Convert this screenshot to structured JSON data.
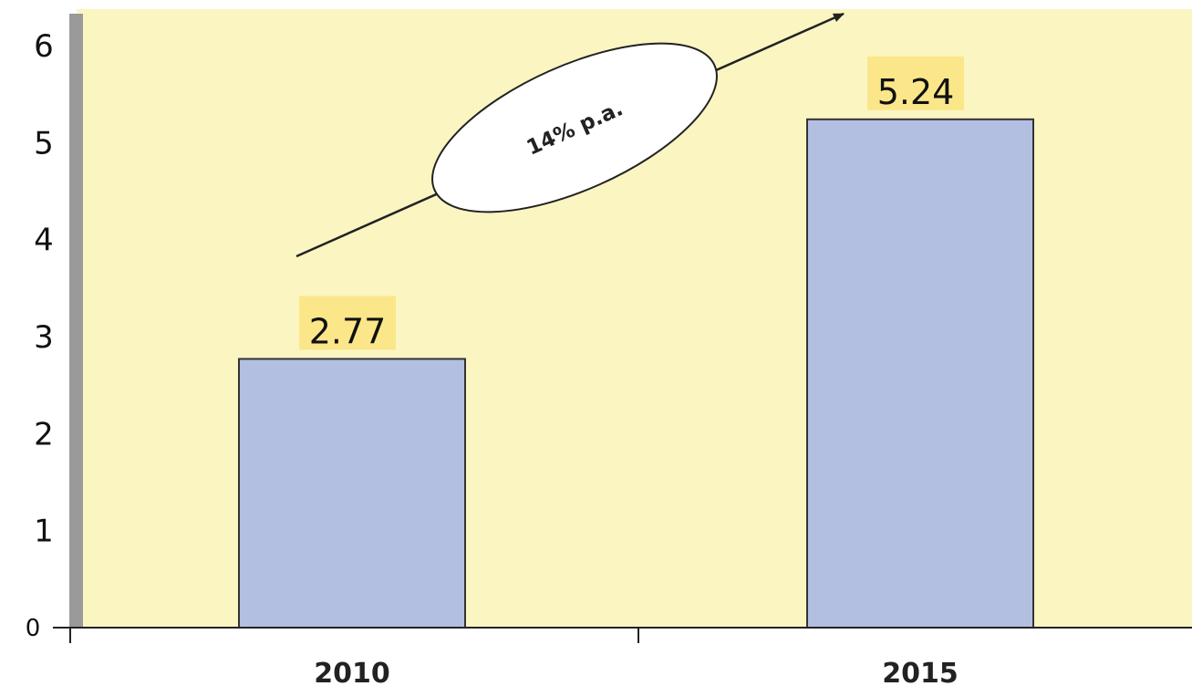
{
  "colors": {
    "plot_background": "#fbf5c2",
    "bar_fill": "#b3bfe1",
    "bar_stroke": "#333333",
    "label_highlight": "#fbe789",
    "axis_gray": "#9a9a9a"
  },
  "annotation": {
    "text": "14% p.a.",
    "shape": "ellipse-on-arrow"
  },
  "chart_data": {
    "type": "bar",
    "title": "",
    "xlabel": "",
    "ylabel": "",
    "categories": [
      "2010",
      "2015"
    ],
    "values": [
      2.77,
      5.24
    ],
    "data_labels": [
      "2.77",
      "5.24"
    ],
    "ylim": [
      0,
      6
    ],
    "yticks": [
      "0",
      "1",
      "2",
      "3",
      "4",
      "5",
      "6"
    ],
    "grid": false,
    "legend": "none"
  }
}
